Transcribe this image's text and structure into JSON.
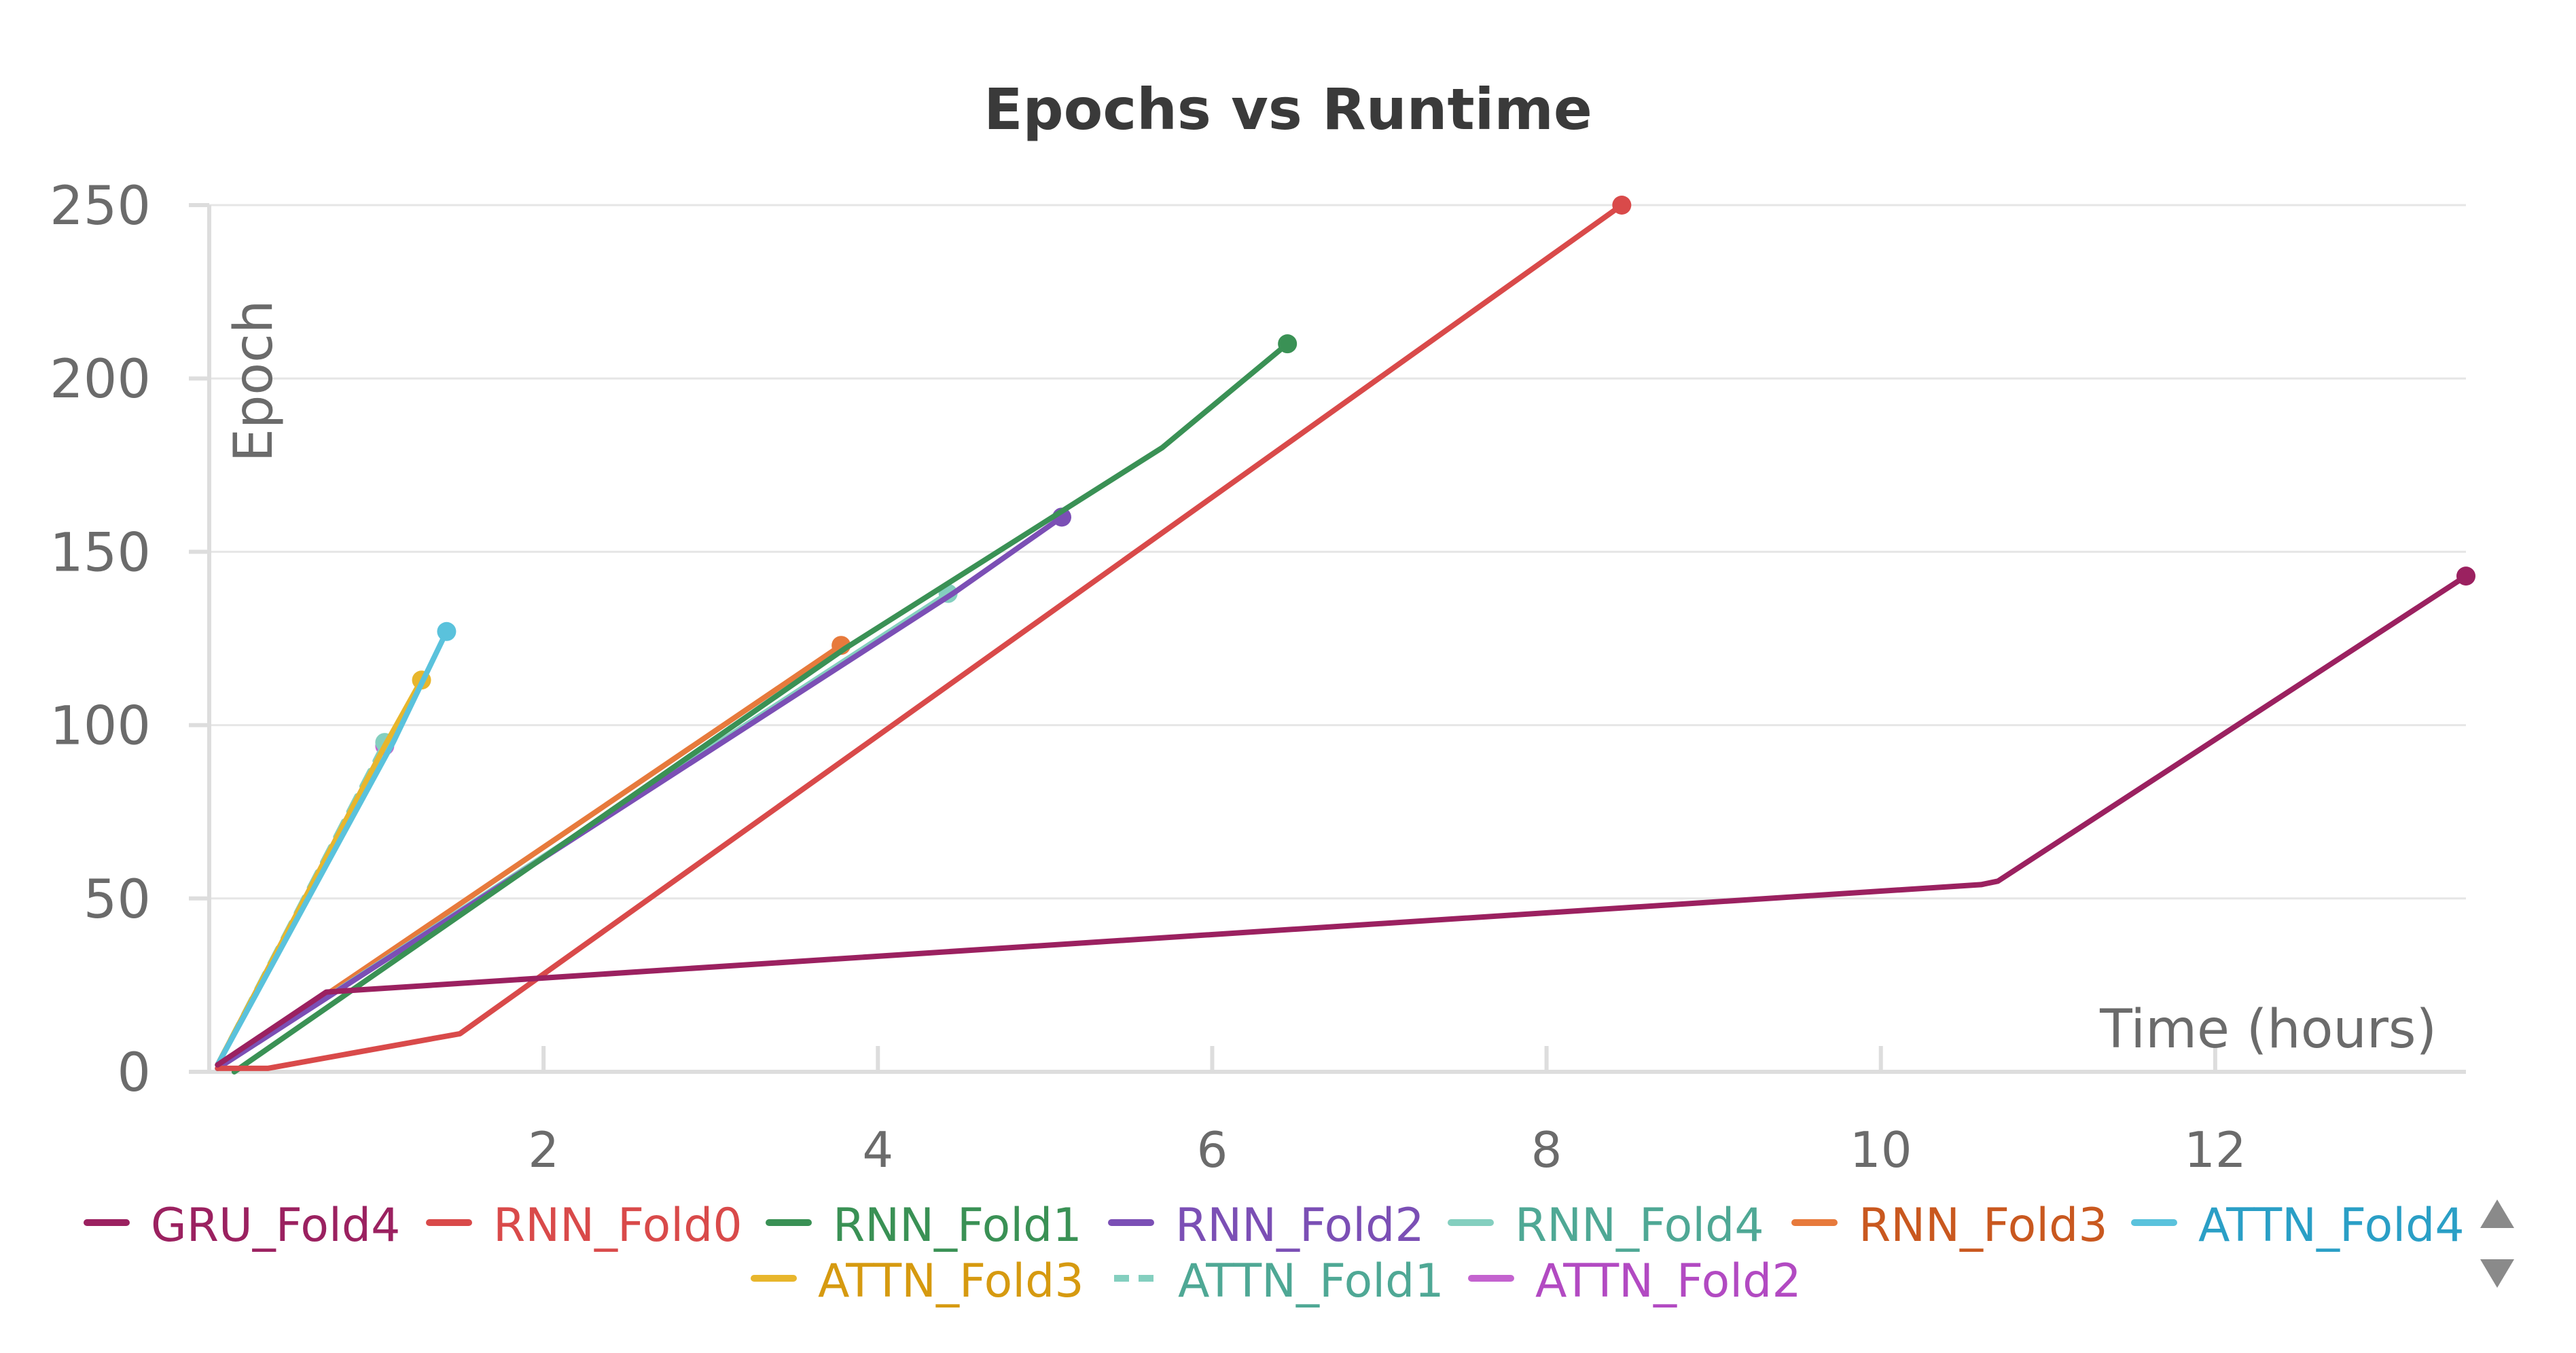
{
  "chart_data": {
    "type": "line",
    "title": "Epochs vs Runtime",
    "xlabel": "Time (hours)",
    "ylabel": "Epoch",
    "xlim": [
      0,
      13.5
    ],
    "ylim": [
      0,
      250
    ],
    "x_ticks": [
      2,
      4,
      6,
      8,
      10,
      12
    ],
    "y_ticks": [
      0,
      50,
      100,
      150,
      200,
      250
    ],
    "grid": true,
    "legend_placement": "bottom",
    "series": [
      {
        "name": "GRU_Fold4",
        "color": "#9b2160",
        "dash": false,
        "points": [
          [
            0.05,
            2
          ],
          [
            0.7,
            23
          ],
          [
            10.6,
            54
          ],
          [
            10.7,
            55
          ],
          [
            13.5,
            143
          ]
        ]
      },
      {
        "name": "RNN_Fold0",
        "color": "#d94a4a",
        "dash": false,
        "points": [
          [
            0.05,
            1
          ],
          [
            0.35,
            1
          ],
          [
            1.5,
            11
          ],
          [
            8.45,
            250
          ]
        ]
      },
      {
        "name": "RNN_Fold1",
        "color": "#3a9155",
        "dash": false,
        "points": [
          [
            0.15,
            0
          ],
          [
            3.8,
            122
          ],
          [
            5.7,
            180
          ],
          [
            6.45,
            210
          ]
        ]
      },
      {
        "name": "RNN_Fold2",
        "color": "#7b4fb5",
        "dash": false,
        "points": [
          [
            0.05,
            1
          ],
          [
            4.45,
            138
          ],
          [
            5.1,
            160
          ]
        ]
      },
      {
        "name": "RNN_Fold4",
        "color": "#84cfbf",
        "dash": false,
        "points": [
          [
            0.05,
            1
          ],
          [
            4.42,
            138
          ]
        ]
      },
      {
        "name": "RNN_Fold3",
        "color": "#e77a3c",
        "dash": false,
        "points": [
          [
            0.05,
            1
          ],
          [
            3.78,
            123
          ]
        ]
      },
      {
        "name": "ATTN_Fold4",
        "color": "#5ac2dc",
        "dash": false,
        "points": [
          [
            0.05,
            2
          ],
          [
            1.1,
            95
          ],
          [
            1.42,
            127
          ]
        ]
      },
      {
        "name": "ATTN_Fold3",
        "color": "#e8b62c",
        "dash": false,
        "points": [
          [
            0.05,
            2
          ],
          [
            1.05,
            94
          ],
          [
            1.27,
            113
          ]
        ]
      },
      {
        "name": "ATTN_Fold1",
        "color": "#84cfbf",
        "dash": true,
        "points": [
          [
            0.05,
            2
          ],
          [
            1.05,
            95
          ]
        ]
      },
      {
        "name": "ATTN_Fold2",
        "color": "#c463cf",
        "dash": false,
        "points": [
          [
            0.05,
            2
          ],
          [
            1.05,
            94
          ]
        ]
      }
    ]
  },
  "legend": {
    "items": [
      {
        "label": "GRU_Fold4",
        "color": "#9b2160",
        "text_color": "#9b2160",
        "dash": false
      },
      {
        "label": "RNN_Fold0",
        "color": "#d94a4a",
        "text_color": "#d94a4a",
        "dash": false
      },
      {
        "label": "RNN_Fold1",
        "color": "#3a9155",
        "text_color": "#3a9155",
        "dash": false
      },
      {
        "label": "RNN_Fold2",
        "color": "#7b4fb5",
        "text_color": "#7b4fb5",
        "dash": false
      },
      {
        "label": "RNN_Fold4",
        "color": "#84cfbf",
        "text_color": "#4fa895",
        "dash": false
      },
      {
        "label": "RNN_Fold3",
        "color": "#e77a3c",
        "text_color": "#c9581f",
        "dash": false
      },
      {
        "label": "ATTN_Fold4",
        "color": "#5ac2dc",
        "text_color": "#2a9fc6",
        "dash": false
      },
      {
        "label": "ATTN_Fold3",
        "color": "#e8b62c",
        "text_color": "#d69a10",
        "dash": false
      },
      {
        "label": "ATTN_Fold1",
        "color": "#84cfbf",
        "text_color": "#4fa895",
        "dash": true
      },
      {
        "label": "ATTN_Fold2",
        "color": "#c463cf",
        "text_color": "#b24ac2",
        "dash": false
      }
    ],
    "scroll_up_icon": "triangle-up-icon",
    "scroll_down_icon": "triangle-down-icon"
  }
}
